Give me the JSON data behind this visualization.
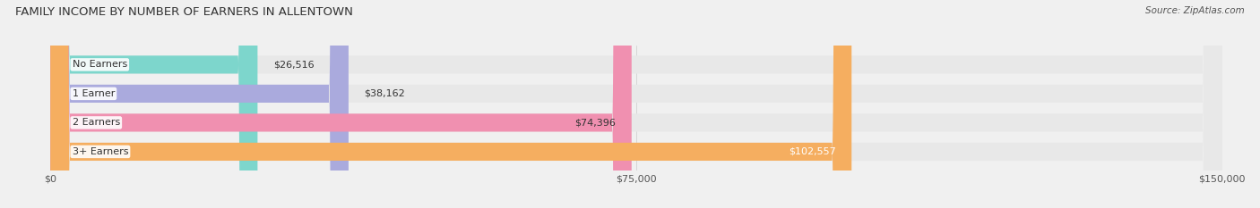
{
  "title": "FAMILY INCOME BY NUMBER OF EARNERS IN ALLENTOWN",
  "source": "Source: ZipAtlas.com",
  "categories": [
    "No Earners",
    "1 Earner",
    "2 Earners",
    "3+ Earners"
  ],
  "values": [
    26516,
    38162,
    74396,
    102557
  ],
  "bar_colors": [
    "#7dd6cc",
    "#aaaadd",
    "#f090b0",
    "#f5ae60"
  ],
  "value_label_colors": [
    "#333333",
    "#333333",
    "#333333",
    "#ffffff"
  ],
  "xlim": [
    0,
    150000
  ],
  "xticks": [
    0,
    75000,
    150000
  ],
  "xticklabels": [
    "$0",
    "$75,000",
    "$150,000"
  ],
  "background_color": "#f0f0f0",
  "bar_background_color": "#e8e8e8",
  "bar_height": 0.62,
  "figsize": [
    14.06,
    2.33
  ],
  "dpi": 100
}
